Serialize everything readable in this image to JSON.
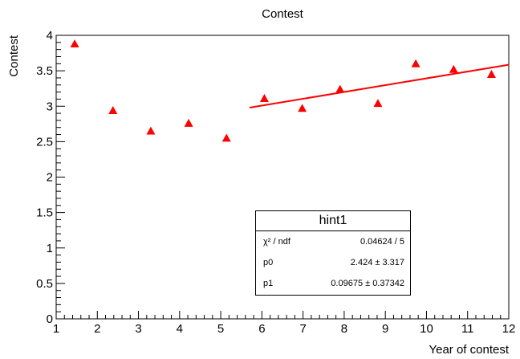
{
  "chart_data": {
    "type": "scatter",
    "title": "Contest",
    "xlabel": "Year of contest",
    "ylabel": "Contest",
    "xlim": [
      1,
      12
    ],
    "ylim": [
      0,
      4
    ],
    "x_ticks": [
      "1",
      "2",
      "3",
      "4",
      "5",
      "6",
      "7",
      "8",
      "9",
      "10",
      "11",
      "12"
    ],
    "y_ticks": [
      "0",
      "0.5",
      "1",
      "1.5",
      "2",
      "2.5",
      "3",
      "3.5",
      "4"
    ],
    "grid": false,
    "marker": "triangle",
    "marker_color": "#ff0000",
    "points": [
      {
        "x": 1.45,
        "y": 3.88
      },
      {
        "x": 2.38,
        "y": 2.94
      },
      {
        "x": 3.3,
        "y": 2.65
      },
      {
        "x": 4.22,
        "y": 2.76
      },
      {
        "x": 5.14,
        "y": 2.55
      },
      {
        "x": 6.06,
        "y": 3.11
      },
      {
        "x": 6.98,
        "y": 2.97
      },
      {
        "x": 7.9,
        "y": 3.24
      },
      {
        "x": 8.82,
        "y": 3.04
      },
      {
        "x": 9.74,
        "y": 3.6
      },
      {
        "x": 10.66,
        "y": 3.52
      },
      {
        "x": 11.58,
        "y": 3.45
      }
    ],
    "fit": {
      "type": "line",
      "color": "#ff0000",
      "x": [
        5.7,
        12
      ],
      "y": [
        2.98,
        3.585
      ]
    },
    "stats": {
      "title": "hint1",
      "rows": [
        {
          "label": "χ² / ndf",
          "value": "0.04624 / 5"
        },
        {
          "label": "p0",
          "value": "2.424 ± 3.317"
        },
        {
          "label": "p1",
          "value": "0.09675 ± 0.37342"
        }
      ]
    }
  }
}
